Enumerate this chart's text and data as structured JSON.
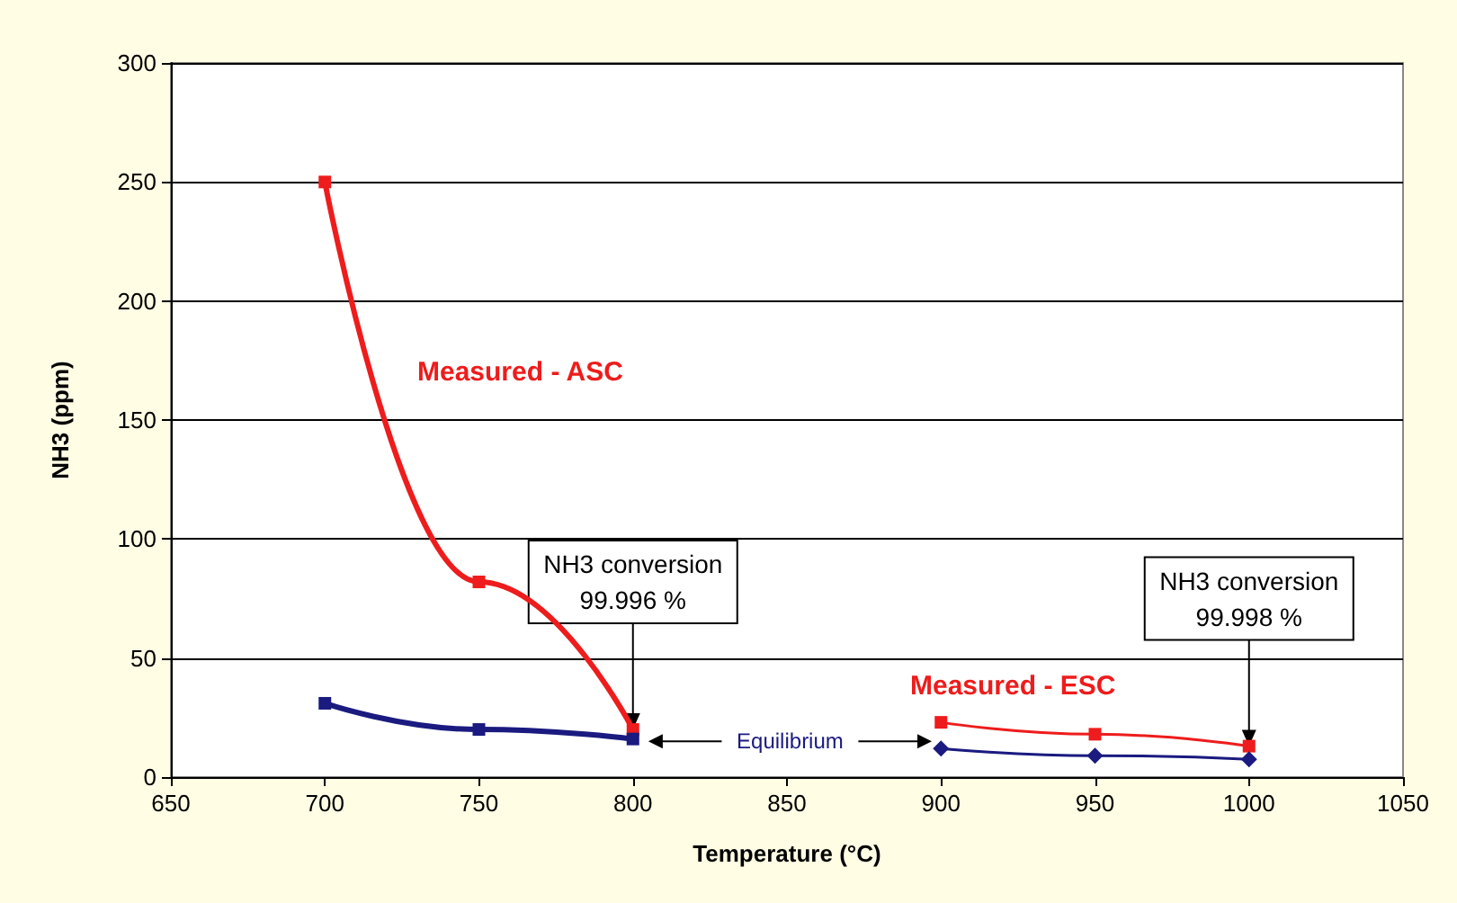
{
  "chart_data": {
    "type": "line",
    "xlabel": "Temperature (°C)",
    "ylabel": "NH3 (ppm)",
    "xlim": [
      650,
      1050
    ],
    "xticks": [
      650,
      700,
      750,
      800,
      850,
      900,
      950,
      1000,
      1050
    ],
    "ylim": [
      0,
      300
    ],
    "yticks": [
      0,
      50,
      100,
      150,
      200,
      250,
      300
    ],
    "grid": "y",
    "legend": false,
    "line_style": "solid",
    "series": [
      {
        "name": "Measured - ASC",
        "color": "#ee1c1c",
        "marker": "square",
        "x": [
          700,
          750,
          800
        ],
        "values": [
          250,
          82,
          20
        ]
      },
      {
        "name": "Equilibrium",
        "color": "#1a1a80",
        "marker": "square",
        "x": [
          700,
          750,
          800
        ],
        "values": [
          31,
          20,
          16
        ]
      },
      {
        "name": "Measured - ESC",
        "color": "#ee1c1c",
        "marker": "square",
        "x": [
          900,
          950,
          1000
        ],
        "values": [
          23,
          18,
          13
        ]
      },
      {
        "color": "#1a1a80",
        "marker": "diamond",
        "x": [
          900,
          950,
          1000
        ],
        "values": [
          12,
          9,
          7.5
        ]
      }
    ],
    "annotations": [
      {
        "text": "NH3 conversion\n99.996 %",
        "x": 800,
        "y": 20
      },
      {
        "text": "NH3 conversion\n99.998 %",
        "x": 1000,
        "y": 13
      }
    ]
  }
}
